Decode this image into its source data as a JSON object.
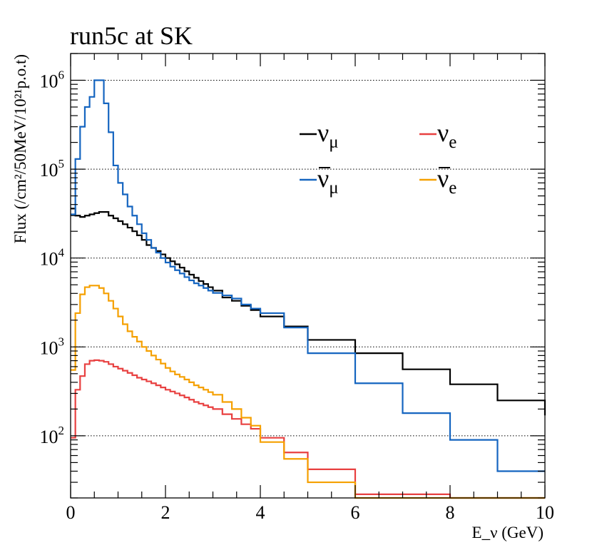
{
  "chart_data": {
    "type": "line",
    "title": "run5c at SK",
    "xlabel": "E_ν (GeV)",
    "ylabel": "Flux (/cm²/50MeV/10²¹p.o.t)",
    "xlim": [
      0,
      10
    ],
    "ylim": [
      20,
      2000000
    ],
    "yscale": "log",
    "grid": "y-major-dotted",
    "legend_position": "top-right",
    "x_ticks": [
      0,
      2,
      4,
      6,
      8,
      10
    ],
    "y_ticks": [
      100,
      1000,
      10000,
      100000,
      1000000
    ],
    "y_tick_labels": [
      {
        "base": "10",
        "exp": "2"
      },
      {
        "base": "10",
        "exp": "3"
      },
      {
        "base": "10",
        "exp": "4"
      },
      {
        "base": "10",
        "exp": "5"
      },
      {
        "base": "10",
        "exp": "6"
      }
    ],
    "series": [
      {
        "name": "ν_μ",
        "legend": {
          "sym": "ν",
          "sub": "μ",
          "bar": false
        },
        "color": "#000000",
        "edges": [
          0,
          0.1,
          0.2,
          0.3,
          0.4,
          0.5,
          0.6,
          0.7,
          0.8,
          0.9,
          1.0,
          1.1,
          1.2,
          1.3,
          1.4,
          1.5,
          1.6,
          1.7,
          1.8,
          1.9,
          2.0,
          2.1,
          2.2,
          2.3,
          2.4,
          2.5,
          2.6,
          2.7,
          2.8,
          2.9,
          3.0,
          3.2,
          3.4,
          3.6,
          3.8,
          4.0,
          4.5,
          5.0,
          6.0,
          7.0,
          8.0,
          9.0,
          10.0
        ],
        "values": [
          36000,
          30000,
          29000,
          30000,
          31000,
          32000,
          33000,
          33000,
          30000,
          28000,
          26000,
          24000,
          22000,
          20000,
          18000,
          16000,
          14000,
          13000,
          12000,
          11000,
          10000,
          9200,
          8500,
          7800,
          7100,
          6500,
          6000,
          5500,
          5100,
          4700,
          4300,
          3600,
          3300,
          2900,
          2600,
          2200,
          1700,
          1200,
          850,
          560,
          380,
          250,
          170
        ]
      },
      {
        "name": "ν̄_μ",
        "legend": {
          "sym": "ν",
          "sub": "μ",
          "bar": true
        },
        "color": "#1565C0",
        "edges": [
          0,
          0.1,
          0.2,
          0.3,
          0.4,
          0.5,
          0.6,
          0.7,
          0.8,
          0.9,
          1.0,
          1.1,
          1.2,
          1.3,
          1.4,
          1.5,
          1.6,
          1.7,
          1.8,
          1.9,
          2.0,
          2.1,
          2.2,
          2.3,
          2.4,
          2.5,
          2.6,
          2.7,
          2.8,
          2.9,
          3.0,
          3.2,
          3.4,
          3.6,
          3.8,
          4.0,
          4.5,
          5.0,
          6.0,
          7.0,
          8.0,
          9.0,
          10.0
        ],
        "values": [
          31000,
          130000,
          300000,
          500000,
          650000,
          1000000,
          1000000,
          550000,
          260000,
          110000,
          70000,
          52000,
          38000,
          30000,
          24000,
          19000,
          16000,
          13000,
          11500,
          10000,
          8900,
          8000,
          7300,
          6700,
          6100,
          5600,
          5200,
          4900,
          4600,
          4300,
          4050,
          3800,
          3500,
          3000,
          2700,
          2400,
          1650,
          850,
          390,
          180,
          90,
          40,
          40
        ]
      },
      {
        "name": "ν_e",
        "legend": {
          "sym": "ν",
          "sub": "e",
          "bar": false
        },
        "color": "#E84040",
        "edges": [
          0,
          0.1,
          0.2,
          0.3,
          0.4,
          0.5,
          0.6,
          0.7,
          0.8,
          0.9,
          1.0,
          1.1,
          1.2,
          1.3,
          1.4,
          1.5,
          1.6,
          1.7,
          1.8,
          1.9,
          2.0,
          2.1,
          2.2,
          2.3,
          2.4,
          2.5,
          2.6,
          2.7,
          2.8,
          2.9,
          3.0,
          3.2,
          3.4,
          3.6,
          3.8,
          4.0,
          4.5,
          5.0,
          6.0,
          7.0,
          8.0,
          9.0,
          10.0
        ],
        "values": [
          95,
          330,
          470,
          640,
          700,
          710,
          700,
          680,
          640,
          600,
          570,
          540,
          510,
          480,
          450,
          430,
          410,
          390,
          370,
          350,
          330,
          315,
          300,
          285,
          270,
          255,
          240,
          230,
          220,
          210,
          200,
          175,
          155,
          135,
          120,
          95,
          65,
          42,
          22,
          22,
          20,
          20,
          20
        ]
      },
      {
        "name": "ν̄_e",
        "legend": {
          "sym": "ν",
          "sub": "e",
          "bar": true
        },
        "color": "#F5A000",
        "edges": [
          0,
          0.1,
          0.2,
          0.3,
          0.4,
          0.5,
          0.6,
          0.7,
          0.8,
          0.9,
          1.0,
          1.1,
          1.2,
          1.3,
          1.4,
          1.5,
          1.6,
          1.7,
          1.8,
          1.9,
          2.0,
          2.1,
          2.2,
          2.3,
          2.4,
          2.5,
          2.6,
          2.7,
          2.8,
          2.9,
          3.0,
          3.2,
          3.4,
          3.6,
          3.8,
          4.0,
          4.5,
          5.0,
          6.0,
          7.0,
          8.0,
          9.0,
          10.0
        ],
        "values": [
          550,
          2400,
          3900,
          4700,
          4900,
          4900,
          4600,
          4000,
          3300,
          2700,
          2200,
          1800,
          1500,
          1300,
          1150,
          1000,
          900,
          800,
          720,
          650,
          580,
          530,
          490,
          460,
          430,
          400,
          370,
          350,
          330,
          310,
          290,
          240,
          200,
          160,
          130,
          85,
          55,
          30,
          20,
          20,
          20,
          20,
          20
        ]
      }
    ]
  }
}
